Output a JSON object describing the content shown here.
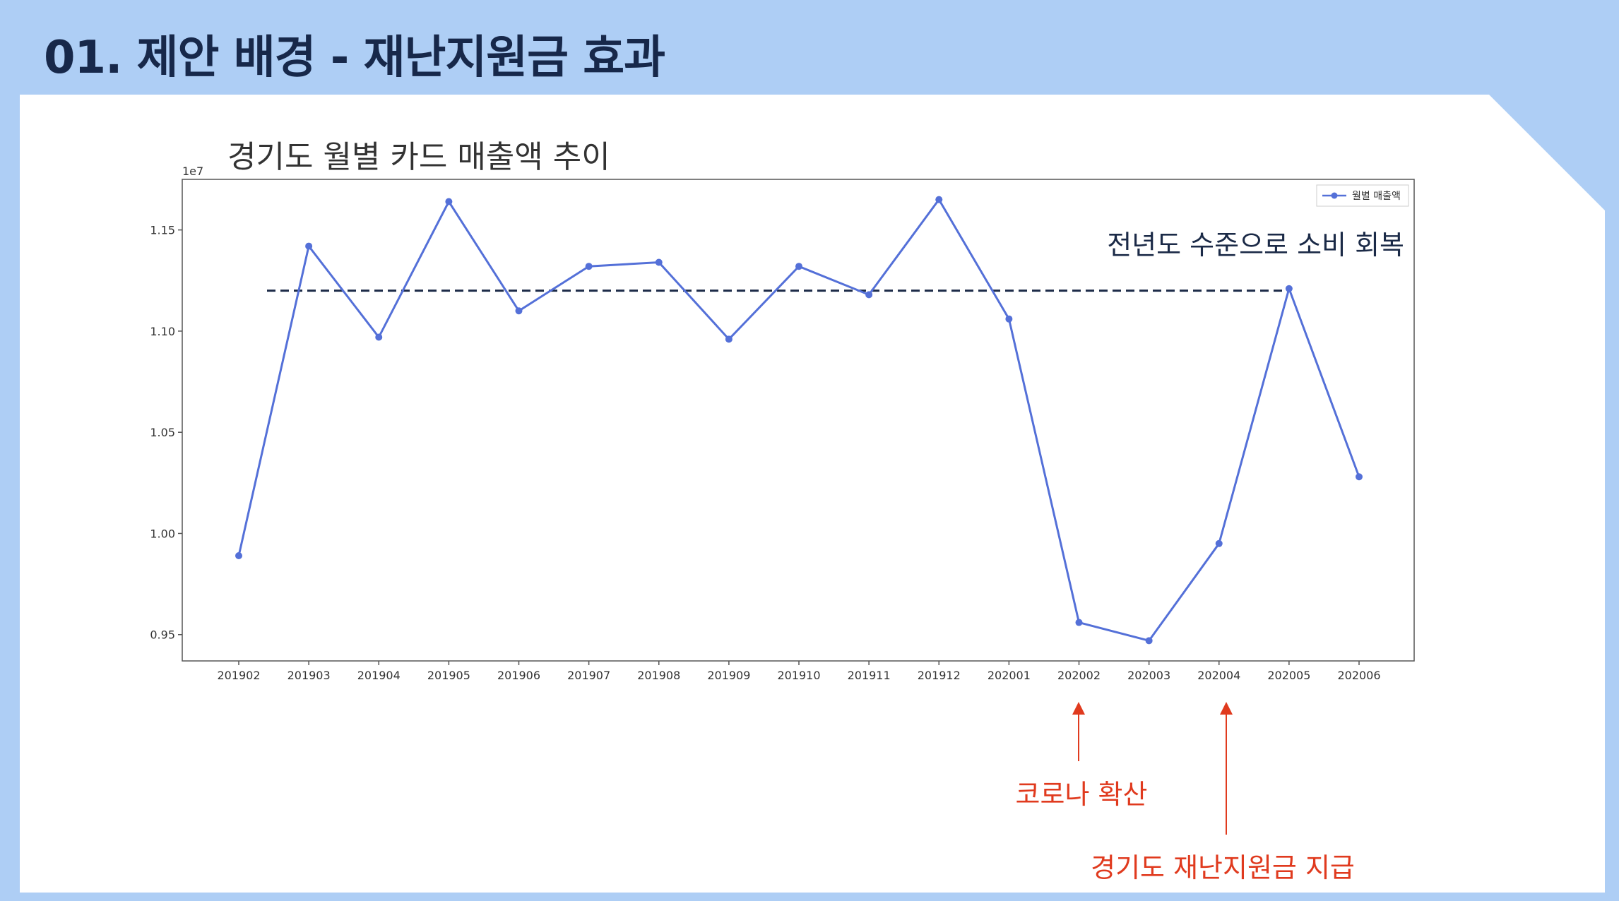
{
  "slide": {
    "title": "01. 제안 배경  -  재난지원금 효과"
  },
  "annotations": {
    "recovery": "전년도 수준으로 소비 회복",
    "covid": "코로나 확산",
    "support": "경기도 재난지원금 지급"
  },
  "colors": {
    "background": "#aecef5",
    "line": "#5470d8",
    "reference_line": "#1b2a47",
    "annotation_red": "#e03a1e",
    "title": "#17284a"
  },
  "chart_data": {
    "type": "line",
    "title": "경기도 월별 카드 매출액 추이",
    "offset_label": "1e7",
    "xlabel": "",
    "ylabel": "",
    "categories": [
      "201902",
      "201903",
      "201904",
      "201905",
      "201906",
      "201907",
      "201908",
      "201909",
      "201910",
      "201911",
      "201912",
      "202001",
      "202002",
      "202003",
      "202004",
      "202005",
      "202006"
    ],
    "series": [
      {
        "name": "월별 매출액",
        "values": [
          0.989,
          1.142,
          1.097,
          1.164,
          1.11,
          1.132,
          1.134,
          1.096,
          1.132,
          1.118,
          1.165,
          1.106,
          0.956,
          0.947,
          0.995,
          1.121,
          1.028
        ]
      }
    ],
    "reference_line": {
      "value": 1.12,
      "from": "201902",
      "to": "202005",
      "style": "dashed"
    },
    "yticks": [
      "0.95",
      "1.00",
      "1.05",
      "1.10",
      "1.15"
    ],
    "ylim": [
      0.937,
      1.175
    ],
    "grid": false,
    "legend": "top-right"
  }
}
